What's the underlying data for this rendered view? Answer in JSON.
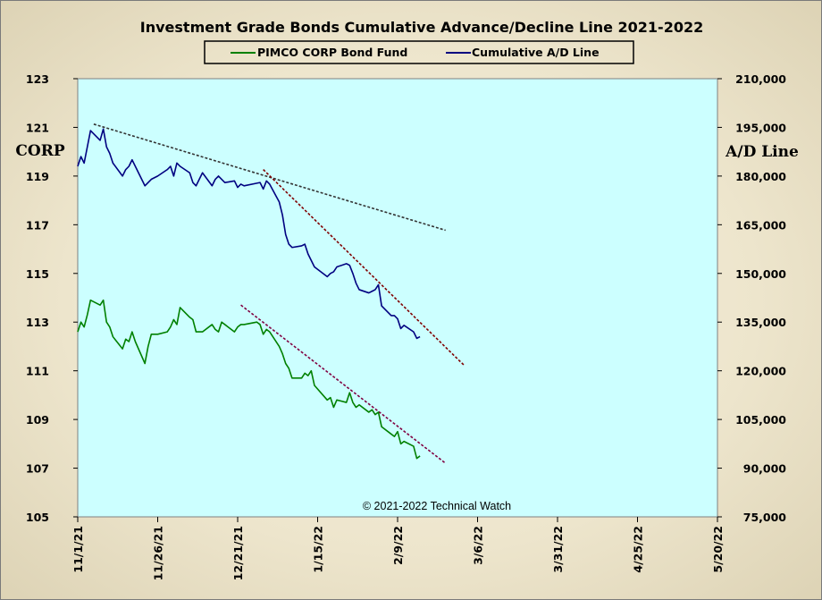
{
  "chart_data": {
    "type": "line",
    "title": "Investment  Grade Bonds Cumulative  Advance/Decline  Line  2021-2022",
    "copyright": "© 2021-2022  Technical Watch",
    "y_left_label": "CORP",
    "y_right_label": "A/D Line",
    "y_left_range": [
      105,
      123
    ],
    "y_left_ticks": [
      "105",
      "107",
      "109",
      "111",
      "113",
      "115",
      "117",
      "119",
      "121",
      "123"
    ],
    "y_right_range": [
      75000,
      210000
    ],
    "y_right_ticks": [
      "75,000",
      "90,000",
      "105,000",
      "120,000",
      "135,000",
      "150,000",
      "165,000",
      "180,000",
      "195,000",
      "210,000"
    ],
    "x_range": [
      "2021-11-01",
      "2022-05-20"
    ],
    "x_ticks": [
      "11/1/21",
      "11/26/21",
      "12/21/21",
      "1/15/22",
      "2/9/22",
      "3/6/22",
      "3/31/22",
      "4/25/22",
      "5/20/22"
    ],
    "legend": {
      "placement": "top-center"
    },
    "grid": false,
    "plot_background": "#ccffff",
    "series": [
      {
        "name": "PIMCO CORP Bond Fund",
        "axis": "left",
        "color": "#008000",
        "points": [
          [
            "2021-11-01",
            112.6
          ],
          [
            "2021-11-02",
            113.0
          ],
          [
            "2021-11-03",
            112.8
          ],
          [
            "2021-11-04",
            113.3
          ],
          [
            "2021-11-05",
            113.9
          ],
          [
            "2021-11-08",
            113.7
          ],
          [
            "2021-11-09",
            113.9
          ],
          [
            "2021-11-10",
            113.0
          ],
          [
            "2021-11-11",
            112.8
          ],
          [
            "2021-11-12",
            112.4
          ],
          [
            "2021-11-15",
            111.9
          ],
          [
            "2021-11-16",
            112.3
          ],
          [
            "2021-11-17",
            112.2
          ],
          [
            "2021-11-18",
            112.6
          ],
          [
            "2021-11-19",
            112.2
          ],
          [
            "2021-11-22",
            111.3
          ],
          [
            "2021-11-23",
            112.0
          ],
          [
            "2021-11-24",
            112.5
          ],
          [
            "2021-11-26",
            112.5
          ],
          [
            "2021-11-29",
            112.6
          ],
          [
            "2021-11-30",
            112.8
          ],
          [
            "2021-12-01",
            113.1
          ],
          [
            "2021-12-02",
            112.9
          ],
          [
            "2021-12-03",
            113.6
          ],
          [
            "2021-12-06",
            113.2
          ],
          [
            "2021-12-07",
            113.1
          ],
          [
            "2021-12-08",
            112.6
          ],
          [
            "2021-12-09",
            112.6
          ],
          [
            "2021-12-10",
            112.6
          ],
          [
            "2021-12-13",
            112.9
          ],
          [
            "2021-12-14",
            112.7
          ],
          [
            "2021-12-15",
            112.6
          ],
          [
            "2021-12-16",
            113.0
          ],
          [
            "2021-12-17",
            112.9
          ],
          [
            "2021-12-20",
            112.6
          ],
          [
            "2021-12-21",
            112.8
          ],
          [
            "2021-12-22",
            112.9
          ],
          [
            "2021-12-23",
            112.9
          ],
          [
            "2021-12-27",
            113.0
          ],
          [
            "2021-12-28",
            112.9
          ],
          [
            "2021-12-29",
            112.5
          ],
          [
            "2021-12-30",
            112.7
          ],
          [
            "2021-12-31",
            112.6
          ],
          [
            "2022-01-03",
            112.0
          ],
          [
            "2022-01-04",
            111.7
          ],
          [
            "2022-01-05",
            111.3
          ],
          [
            "2022-01-06",
            111.1
          ],
          [
            "2022-01-07",
            110.7
          ],
          [
            "2022-01-10",
            110.7
          ],
          [
            "2022-01-11",
            110.9
          ],
          [
            "2022-01-12",
            110.8
          ],
          [
            "2022-01-13",
            111.0
          ],
          [
            "2022-01-14",
            110.4
          ],
          [
            "2022-01-18",
            109.8
          ],
          [
            "2022-01-19",
            109.9
          ],
          [
            "2022-01-20",
            109.5
          ],
          [
            "2022-01-21",
            109.8
          ],
          [
            "2022-01-24",
            109.7
          ],
          [
            "2022-01-25",
            110.1
          ],
          [
            "2022-01-26",
            109.7
          ],
          [
            "2022-01-27",
            109.5
          ],
          [
            "2022-01-28",
            109.6
          ],
          [
            "2022-01-31",
            109.3
          ],
          [
            "2022-02-01",
            109.4
          ],
          [
            "2022-02-02",
            109.2
          ],
          [
            "2022-02-03",
            109.3
          ],
          [
            "2022-02-04",
            108.7
          ],
          [
            "2022-02-07",
            108.4
          ],
          [
            "2022-02-08",
            108.3
          ],
          [
            "2022-02-09",
            108.5
          ],
          [
            "2022-02-10",
            108.0
          ],
          [
            "2022-02-11",
            108.1
          ],
          [
            "2022-02-14",
            107.9
          ],
          [
            "2022-02-15",
            107.4
          ],
          [
            "2022-02-16",
            107.5
          ]
        ]
      },
      {
        "name": "Cumulative A/D Line",
        "axis": "right",
        "color": "#000080",
        "points": [
          [
            "2021-11-01",
            183000
          ],
          [
            "2021-11-02",
            186000
          ],
          [
            "2021-11-03",
            184000
          ],
          [
            "2021-11-04",
            189000
          ],
          [
            "2021-11-05",
            194000
          ],
          [
            "2021-11-08",
            191000
          ],
          [
            "2021-11-09",
            194500
          ],
          [
            "2021-11-10",
            189000
          ],
          [
            "2021-11-11",
            187000
          ],
          [
            "2021-11-12",
            184000
          ],
          [
            "2021-11-15",
            180000
          ],
          [
            "2021-11-16",
            182000
          ],
          [
            "2021-11-17",
            183000
          ],
          [
            "2021-11-18",
            185000
          ],
          [
            "2021-11-19",
            183000
          ],
          [
            "2021-11-22",
            177000
          ],
          [
            "2021-11-23",
            178000
          ],
          [
            "2021-11-24",
            179000
          ],
          [
            "2021-11-26",
            180000
          ],
          [
            "2021-11-29",
            182000
          ],
          [
            "2021-11-30",
            183000
          ],
          [
            "2021-12-01",
            180000
          ],
          [
            "2021-12-02",
            184000
          ],
          [
            "2021-12-03",
            183000
          ],
          [
            "2021-12-06",
            181000
          ],
          [
            "2021-12-07",
            178000
          ],
          [
            "2021-12-08",
            177000
          ],
          [
            "2021-12-09",
            179000
          ],
          [
            "2021-12-10",
            181000
          ],
          [
            "2021-12-13",
            177000
          ],
          [
            "2021-12-14",
            179000
          ],
          [
            "2021-12-15",
            180000
          ],
          [
            "2021-12-16",
            179000
          ],
          [
            "2021-12-17",
            178000
          ],
          [
            "2021-12-20",
            178500
          ],
          [
            "2021-12-21",
            176500
          ],
          [
            "2021-12-22",
            177500
          ],
          [
            "2021-12-23",
            177000
          ],
          [
            "2021-12-27",
            177800
          ],
          [
            "2021-12-28",
            178000
          ],
          [
            "2021-12-29",
            176000
          ],
          [
            "2021-12-30",
            178500
          ],
          [
            "2021-12-31",
            177500
          ],
          [
            "2022-01-03",
            172000
          ],
          [
            "2022-01-04",
            168000
          ],
          [
            "2022-01-05",
            162000
          ],
          [
            "2022-01-06",
            159000
          ],
          [
            "2022-01-07",
            158000
          ],
          [
            "2022-01-10",
            158500
          ],
          [
            "2022-01-11",
            159000
          ],
          [
            "2022-01-12",
            156000
          ],
          [
            "2022-01-13",
            154000
          ],
          [
            "2022-01-14",
            152000
          ],
          [
            "2022-01-18",
            149000
          ],
          [
            "2022-01-19",
            150000
          ],
          [
            "2022-01-20",
            150500
          ],
          [
            "2022-01-21",
            152000
          ],
          [
            "2022-01-24",
            153000
          ],
          [
            "2022-01-25",
            152500
          ],
          [
            "2022-01-26",
            150000
          ],
          [
            "2022-01-27",
            147000
          ],
          [
            "2022-01-28",
            145000
          ],
          [
            "2022-01-31",
            144000
          ],
          [
            "2022-02-01",
            144500
          ],
          [
            "2022-02-02",
            145000
          ],
          [
            "2022-02-03",
            146500
          ],
          [
            "2022-02-04",
            140000
          ],
          [
            "2022-02-07",
            137000
          ],
          [
            "2022-02-08",
            137000
          ],
          [
            "2022-02-09",
            136000
          ],
          [
            "2022-02-10",
            133000
          ],
          [
            "2022-02-11",
            134000
          ],
          [
            "2022-02-14",
            132000
          ],
          [
            "2022-02-15",
            130000
          ],
          [
            "2022-02-16",
            130500
          ]
        ]
      }
    ],
    "trendlines": [
      {
        "axis": "right",
        "color": "#333333",
        "from": [
          "2021-11-06",
          196000
        ],
        "to": [
          "2022-02-24",
          163300
        ]
      },
      {
        "axis": "right",
        "color": "#800000",
        "from": [
          "2021-12-29",
          182000
        ],
        "to": [
          "2022-03-02",
          121500
        ]
      },
      {
        "axis": "left",
        "color": "#800040",
        "from": [
          "2021-12-22",
          113.7
        ],
        "to": [
          "2022-02-24",
          107.2
        ]
      }
    ]
  }
}
